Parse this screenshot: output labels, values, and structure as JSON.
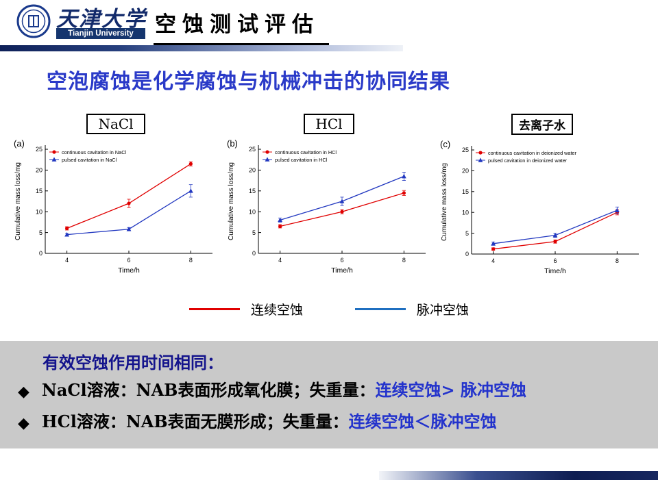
{
  "header": {
    "logo_cn": "天津大学",
    "logo_en": "Tianjin University",
    "title": "空蚀测试评估"
  },
  "heading": "空泡腐蚀是化学腐蚀与机械冲击的协同结果",
  "chart_data": [
    {
      "type": "line",
      "panel": "(a)",
      "box_label": "NaCl",
      "x": [
        4,
        6,
        8
      ],
      "series": [
        {
          "name": "continuous cavitation in NaCl",
          "color": "#e00000",
          "marker": "circle",
          "values": [
            6,
            12,
            21.5
          ],
          "err": [
            0.4,
            1.0,
            0.5
          ]
        },
        {
          "name": "pulsed  cavitation in  NaCl",
          "color": "#2238c0",
          "marker": "triangle",
          "values": [
            4.5,
            5.8,
            15
          ],
          "err": [
            0.3,
            0.4,
            1.5
          ]
        }
      ],
      "xlabel": "Time/h",
      "ylabel": "Cumulative mass loss/mg",
      "xlim": [
        3.3,
        8.7
      ],
      "ylim": [
        0,
        25
      ],
      "yticks": [
        0,
        5,
        10,
        15,
        20,
        25
      ],
      "grid": false
    },
    {
      "type": "line",
      "panel": "(b)",
      "box_label": "HCl",
      "x": [
        4,
        6,
        8
      ],
      "series": [
        {
          "name": "continuous cavitation in  HCl",
          "color": "#e00000",
          "marker": "circle",
          "values": [
            6.5,
            10,
            14.5
          ],
          "err": [
            0.4,
            0.5,
            0.6
          ]
        },
        {
          "name": "pulsed  cavitation in  HCl",
          "color": "#2238c0",
          "marker": "triangle",
          "values": [
            8,
            12.5,
            18.5
          ],
          "err": [
            0.5,
            1.0,
            1.0
          ]
        }
      ],
      "xlabel": "Time/h",
      "ylabel": "Cumulative mass loss/mg",
      "xlim": [
        3.3,
        8.7
      ],
      "ylim": [
        0,
        25
      ],
      "yticks": [
        0,
        5,
        10,
        15,
        20,
        25
      ],
      "grid": false
    },
    {
      "type": "line",
      "panel": "(c)",
      "box_label": "去离子水",
      "x": [
        4,
        6,
        8
      ],
      "series": [
        {
          "name": "continuous cavitation in deionized water",
          "color": "#e00000",
          "marker": "circle",
          "values": [
            1.2,
            3,
            10
          ],
          "err": [
            0.3,
            0.4,
            0.6
          ]
        },
        {
          "name": "pulsed  cavitation in deionized water",
          "color": "#2238c0",
          "marker": "triangle",
          "values": [
            2.5,
            4.5,
            10.5
          ],
          "err": [
            0.4,
            0.5,
            0.8
          ]
        }
      ],
      "xlabel": "Time/h",
      "ylabel": "Cumulative mass loss/mg",
      "xlim": [
        3.3,
        8.7
      ],
      "ylim": [
        0,
        25
      ],
      "yticks": [
        0,
        5,
        10,
        15,
        20,
        25
      ],
      "grid": false
    }
  ],
  "chart_legend": {
    "items": [
      {
        "label": "连续空蚀",
        "color": "#e00000"
      },
      {
        "label": "脉冲空蚀",
        "color": "#1f6fc0"
      }
    ]
  },
  "summary": {
    "title": "有效空蚀作用时间相同：",
    "bullets": [
      {
        "marker": "◆",
        "black": "NaCl溶液：NAB表面形成氧化膜；失重量：",
        "blue": "连续空蚀> 脉冲空蚀"
      },
      {
        "marker": "◆",
        "black": "HCl溶液：NAB表面无膜形成；失重量：",
        "blue": "连续空蚀＜脉冲空蚀"
      }
    ]
  },
  "colors": {
    "heading_blue": "#2a3ac8",
    "summary_title_blue": "#14148c",
    "bullet_blue": "#2333cc",
    "bar_navy": "#0e2058",
    "panel_gray": "#c9c9c9",
    "series_red": "#e00000",
    "series_blue": "#2238c0"
  }
}
